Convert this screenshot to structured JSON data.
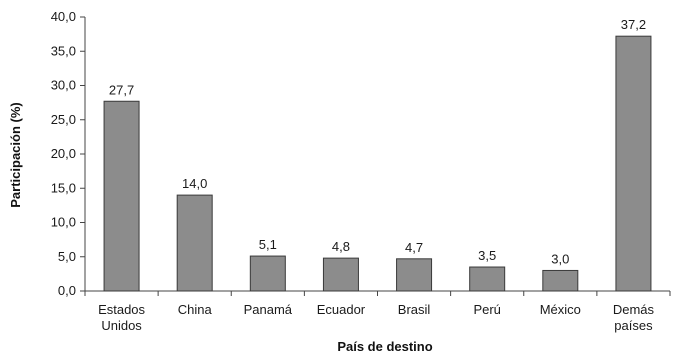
{
  "chart_data": {
    "type": "bar",
    "categories": [
      [
        "Estados",
        "Unidos"
      ],
      [
        "China"
      ],
      [
        "Panamá"
      ],
      [
        "Ecuador"
      ],
      [
        "Brasil"
      ],
      [
        "Perú"
      ],
      [
        "México"
      ],
      [
        "Demás",
        "países"
      ]
    ],
    "values": [
      27.7,
      14.0,
      5.1,
      4.8,
      4.7,
      3.5,
      3.0,
      37.2
    ],
    "value_labels": [
      "27,7",
      "14,0",
      "5,1",
      "4,8",
      "4,7",
      "3,5",
      "3,0",
      "37,2"
    ],
    "y_ticks": [
      0,
      5,
      10,
      15,
      20,
      25,
      30,
      35,
      40
    ],
    "y_tick_labels": [
      "0,0",
      "5,0",
      "10,0",
      "15,0",
      "20,0",
      "25,0",
      "30,0",
      "35,0",
      "40,0"
    ],
    "ylim": [
      0,
      40
    ],
    "xlabel": "País de destino",
    "ylabel": "Participación (%)",
    "bar_color": "#8c8c8c",
    "bar_edge_color": "#3a3a3a",
    "grid": false,
    "legend": false
  }
}
